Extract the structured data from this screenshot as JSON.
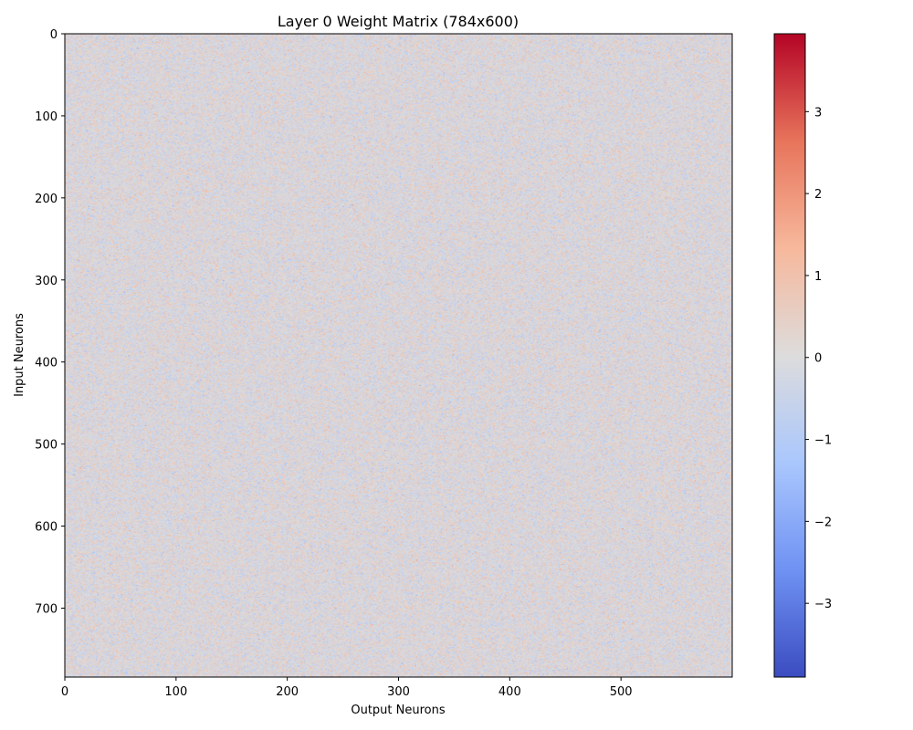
{
  "chart_data": {
    "type": "heatmap",
    "title": "Layer 0 Weight Matrix (784x600)",
    "xlabel": "Output Neurons",
    "ylabel": "Input Neurons",
    "matrix_shape": [
      784,
      600
    ],
    "xlim": [
      0,
      600
    ],
    "ylim": [
      784,
      0
    ],
    "x_ticks": [
      0,
      100,
      200,
      300,
      400,
      500
    ],
    "y_ticks": [
      0,
      100,
      200,
      300,
      400,
      500,
      600,
      700
    ],
    "x_tick_labels": [
      "0",
      "100",
      "200",
      "300",
      "400",
      "500"
    ],
    "y_tick_labels": [
      "0",
      "100",
      "200",
      "300",
      "400",
      "500",
      "600",
      "700"
    ],
    "colormap": "coolwarm",
    "colormap_stops": [
      "#3b4cc0",
      "#6f92f3",
      "#aac7fd",
      "#dddcdc",
      "#f7b89c",
      "#e7745b",
      "#b40426"
    ],
    "color_range": [
      -3.9,
      3.95
    ],
    "colorbar_ticks": [
      3,
      2,
      1,
      0,
      -1,
      -2,
      -3
    ],
    "colorbar_tick_labels": [
      "3",
      "2",
      "1",
      "0",
      "−1",
      "−2",
      "−3"
    ],
    "value_distribution": "approximately normal, mean 0, std 0.5"
  }
}
